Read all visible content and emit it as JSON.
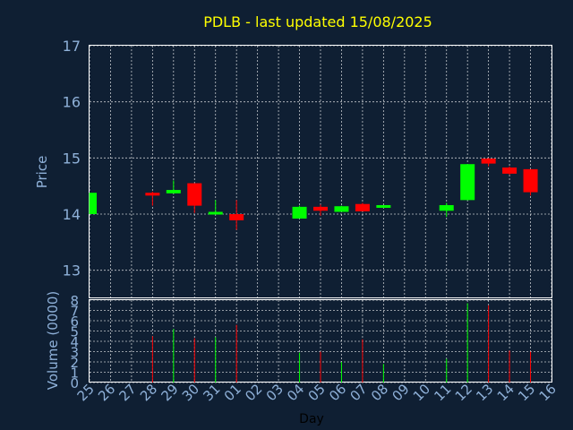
{
  "chart_data": {
    "type": "candlestick",
    "title": "PDLB - last updated 15/08/2025",
    "xlabel": "Day",
    "colors": {
      "up": "#00ff00",
      "down": "#ff0000",
      "background": "#0f1f33",
      "text": "#8fb1d9",
      "title": "#ffff00",
      "grid": "#ffffff"
    },
    "x_ticks": [
      "25",
      "26",
      "27",
      "28",
      "29",
      "30",
      "31",
      "01",
      "02",
      "03",
      "04",
      "05",
      "06",
      "07",
      "08",
      "09",
      "10",
      "11",
      "12",
      "13",
      "14",
      "15",
      "16"
    ],
    "price_panel": {
      "ylabel": "Price",
      "ylim": [
        12.5,
        17
      ],
      "yticks": [
        13,
        14,
        15,
        16,
        17
      ]
    },
    "volume_panel": {
      "ylabel": "Volume (0000)",
      "ylim": [
        0,
        8
      ],
      "yticks": [
        0,
        1,
        2,
        3,
        4,
        5,
        6,
        7,
        8
      ]
    },
    "candles": [
      {
        "day": "25",
        "open": 14.0,
        "close": 14.38,
        "high": 14.38,
        "low": 14.0,
        "volume": 0
      },
      {
        "day": "28",
        "open": 14.38,
        "close": 14.33,
        "high": 14.4,
        "low": 14.15,
        "volume": 4.5
      },
      {
        "day": "29",
        "open": 14.37,
        "close": 14.43,
        "high": 14.6,
        "low": 14.37,
        "volume": 5.2
      },
      {
        "day": "30",
        "open": 14.55,
        "close": 14.15,
        "high": 14.55,
        "low": 14.02,
        "volume": 4.3
      },
      {
        "day": "31",
        "open": 14.02,
        "close": 14.04,
        "high": 14.25,
        "low": 14.02,
        "volume": 4.4
      },
      {
        "day": "01",
        "open": 14.0,
        "close": 13.89,
        "high": 14.25,
        "low": 13.72,
        "volume": 5.6
      },
      {
        "day": "04",
        "open": 13.92,
        "close": 14.13,
        "high": 14.15,
        "low": 13.92,
        "volume": 2.9
      },
      {
        "day": "05",
        "open": 14.13,
        "close": 14.06,
        "high": 14.17,
        "low": 13.97,
        "volume": 3.0
      },
      {
        "day": "06",
        "open": 14.04,
        "close": 14.14,
        "high": 14.15,
        "low": 14.04,
        "volume": 2.0
      },
      {
        "day": "07",
        "open": 14.18,
        "close": 14.05,
        "high": 14.2,
        "low": 14.05,
        "volume": 4.2
      },
      {
        "day": "08",
        "open": 14.12,
        "close": 14.16,
        "high": 14.16,
        "low": 14.12,
        "volume": 1.8
      },
      {
        "day": "11",
        "open": 14.06,
        "close": 14.16,
        "high": 14.2,
        "low": 13.95,
        "volume": 2.3
      },
      {
        "day": "12",
        "open": 14.25,
        "close": 14.89,
        "high": 14.89,
        "low": 14.25,
        "volume": 7.7
      },
      {
        "day": "13",
        "open": 14.99,
        "close": 14.9,
        "high": 15.0,
        "low": 14.85,
        "volume": 7.5
      },
      {
        "day": "14",
        "open": 14.83,
        "close": 14.72,
        "high": 14.85,
        "low": 14.7,
        "volume": 3.1
      },
      {
        "day": "15",
        "open": 14.8,
        "close": 14.39,
        "high": 14.8,
        "low": 14.33,
        "volume": 3.0
      }
    ]
  }
}
